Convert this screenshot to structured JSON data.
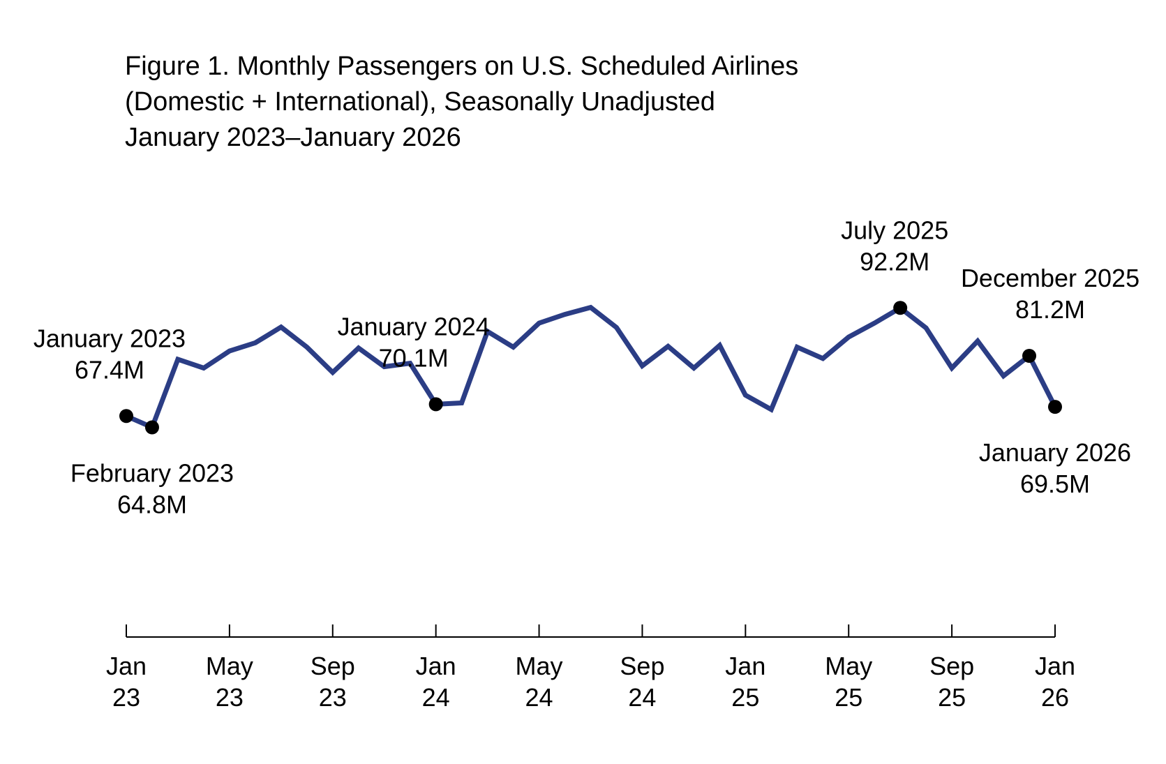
{
  "chart_data": {
    "type": "line",
    "title": [
      "Figure 1. Monthly Passengers on U.S. Scheduled Airlines",
      "(Domestic + International), Seasonally Unadjusted",
      "January 2023–January 2026"
    ],
    "xlabel": "",
    "ylabel": "",
    "x": [
      "2023-01",
      "2023-02",
      "2023-03",
      "2023-04",
      "2023-05",
      "2023-06",
      "2023-07",
      "2023-08",
      "2023-09",
      "2023-10",
      "2023-11",
      "2023-12",
      "2024-01",
      "2024-02",
      "2024-03",
      "2024-04",
      "2024-05",
      "2024-06",
      "2024-07",
      "2024-08",
      "2024-09",
      "2024-10",
      "2024-11",
      "2024-12",
      "2025-01",
      "2025-02",
      "2025-03",
      "2025-04",
      "2025-05",
      "2025-06",
      "2025-07",
      "2025-08",
      "2025-09",
      "2025-10",
      "2025-11",
      "2025-12",
      "2026-01"
    ],
    "series": [
      {
        "name": "",
        "color": "#2b3d85",
        "values": [
          67.4,
          64.8,
          80.4,
          78.4,
          82.3,
          84.2,
          87.8,
          83.2,
          77.4,
          83.0,
          78.7,
          79.5,
          70.1,
          70.4,
          86.8,
          83.2,
          88.7,
          90.7,
          92.3,
          87.7,
          78.9,
          83.4,
          78.4,
          83.6,
          72.2,
          68.9,
          83.2,
          80.6,
          85.5,
          88.7,
          92.2,
          87.6,
          78.4,
          84.6,
          76.6,
          81.2,
          69.5
        ]
      }
    ],
    "ylim": [
      40,
      120
    ],
    "grid": false,
    "legend": "none",
    "x_ticks": [
      {
        "x": "2023-01",
        "label": [
          "Jan",
          "23"
        ]
      },
      {
        "x": "2023-05",
        "label": [
          "May",
          "23"
        ]
      },
      {
        "x": "2023-09",
        "label": [
          "Sep",
          "23"
        ]
      },
      {
        "x": "2024-01",
        "label": [
          "Jan",
          "24"
        ]
      },
      {
        "x": "2024-05",
        "label": [
          "May",
          "24"
        ]
      },
      {
        "x": "2024-09",
        "label": [
          "Sep",
          "24"
        ]
      },
      {
        "x": "2025-01",
        "label": [
          "Jan",
          "25"
        ]
      },
      {
        "x": "2025-05",
        "label": [
          "May",
          "25"
        ]
      },
      {
        "x": "2025-09",
        "label": [
          "Sep",
          "25"
        ]
      },
      {
        "x": "2026-01",
        "label": [
          "Jan",
          "26"
        ]
      }
    ],
    "annotations": [
      {
        "x": "2023-01",
        "lines": [
          "January 2023",
          "67.4M"
        ],
        "placement": "above"
      },
      {
        "x": "2023-02",
        "lines": [
          "February 2023",
          "64.8M"
        ],
        "placement": "below"
      },
      {
        "x": "2024-01",
        "lines": [
          "January 2024",
          "70.1M"
        ],
        "placement": "above"
      },
      {
        "x": "2025-07",
        "lines": [
          "July 2025",
          "92.2M"
        ],
        "placement": "above"
      },
      {
        "x": "2025-12",
        "lines": [
          "December 2025",
          "81.2M"
        ],
        "placement": "above"
      },
      {
        "x": "2026-01",
        "lines": [
          "January 2026",
          "69.5M"
        ],
        "placement": "below"
      }
    ]
  }
}
